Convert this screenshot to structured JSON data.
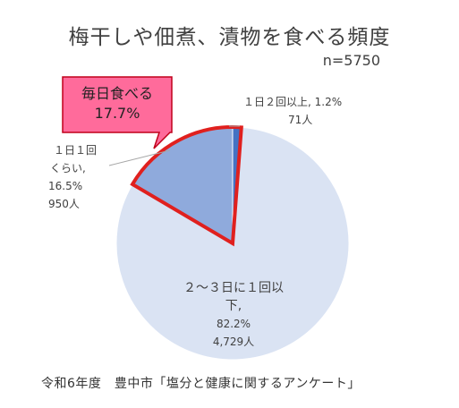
{
  "colors": {
    "main_slice": "#dae3f3",
    "daily_slice": "#8faadc",
    "top_slice": "#4472c4",
    "highlight": "#e0201e",
    "callout_fill": "#ff6b9b",
    "callout_border": "#c0001a"
  },
  "chart_data": {
    "type": "pie",
    "title": "梅干しや佃煮、漬物を食べる頻度",
    "subtitle": "n=5750",
    "slices": [
      {
        "name": "１日２回以上",
        "percent": 1.2,
        "count": 71,
        "percent_label": "1.2%",
        "count_label": "71人",
        "color": "#4472c4"
      },
      {
        "name": "２～３日に１回以下",
        "percent": 82.2,
        "count": 4729,
        "percent_label": "82.2%",
        "count_label": "4,729人",
        "color": "#dae3f3"
      },
      {
        "name": "１日１回くらい",
        "percent": 16.5,
        "count": 950,
        "percent_label": "16.5%",
        "count_label": "950人",
        "color": "#8faadc"
      }
    ],
    "callout": {
      "label": "毎日食べる",
      "value": "17.7%"
    }
  },
  "labels": {
    "top_line1": "１日２回以上, 1.2%",
    "top_line2": "71人",
    "left_line1": "１日１回",
    "left_line2": "くらい,",
    "left_line3": "16.5%",
    "left_line4": "950人",
    "main_line1": "２～３日に１回以下,",
    "main_line2": "82.2%",
    "main_line3": "4,729人"
  },
  "footer": "令和6年度　豊中市「塩分と健康に関するアンケート」"
}
